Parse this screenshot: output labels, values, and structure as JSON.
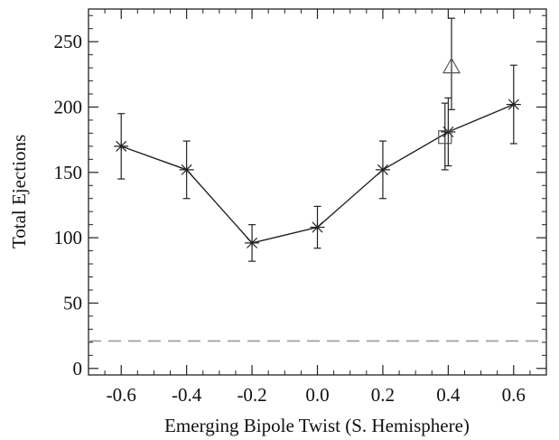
{
  "chart_data": {
    "type": "line",
    "title": "",
    "xlabel": "Emerging Bipole Twist (S. Hemisphere)",
    "ylabel": "Total Ejections",
    "xlim": [
      -0.7,
      0.7
    ],
    "ylim": [
      -5,
      275
    ],
    "xticks": [
      -0.6,
      -0.4,
      -0.2,
      0.0,
      0.2,
      0.4,
      0.6
    ],
    "xtick_labels": [
      "-0.6",
      "-0.4",
      "-0.2",
      "0.0",
      "0.2",
      "0.4",
      "0.6"
    ],
    "yticks": [
      0,
      50,
      100,
      150,
      200,
      250
    ],
    "ytick_labels": [
      "0",
      "50",
      "100",
      "150",
      "200",
      "250"
    ],
    "grid": false,
    "series": [
      {
        "marker": "asterisk",
        "connected": true,
        "x": [
          -0.6,
          -0.4,
          -0.2,
          0.0,
          0.2,
          0.4,
          0.6
        ],
        "y": [
          170,
          152,
          96,
          108,
          152,
          181,
          202
        ],
        "yerr_low": [
          145,
          130,
          82,
          92,
          130,
          155,
          172
        ],
        "yerr_high": [
          195,
          174,
          110,
          124,
          174,
          207,
          232
        ]
      },
      {
        "marker": "square",
        "connected": false,
        "x": [
          0.39
        ],
        "y": [
          177
        ],
        "yerr_low": [
          152
        ],
        "yerr_high": [
          203
        ]
      },
      {
        "marker": "triangle",
        "connected": false,
        "x": [
          0.41
        ],
        "y": [
          231
        ],
        "yerr_low": [
          198
        ],
        "yerr_high": [
          268
        ]
      }
    ],
    "reference_line": {
      "y": 21,
      "style": "dashed",
      "color": "#9a9a9a"
    },
    "colors": {
      "line": "#222222",
      "axis": "#222222"
    }
  }
}
